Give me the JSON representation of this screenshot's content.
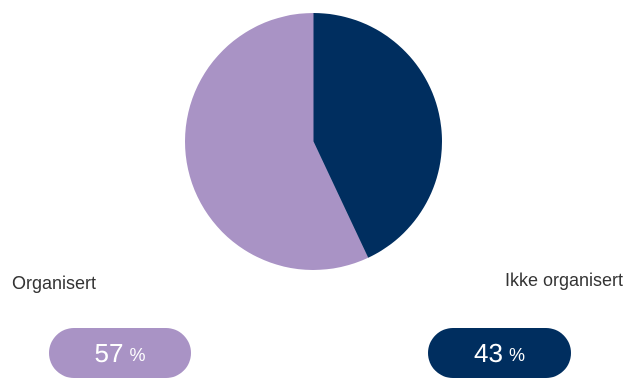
{
  "chart_data": {
    "type": "pie",
    "title": "",
    "slices": [
      {
        "label": "Organisert",
        "value": 57,
        "unit": "%",
        "color": "#a993c5"
      },
      {
        "label": "Ikke organisert",
        "value": 43,
        "unit": "%",
        "color": "#002e5f"
      }
    ]
  },
  "colors": {
    "organisert": "#a993c5",
    "ikke_organisert": "#002e5f"
  }
}
